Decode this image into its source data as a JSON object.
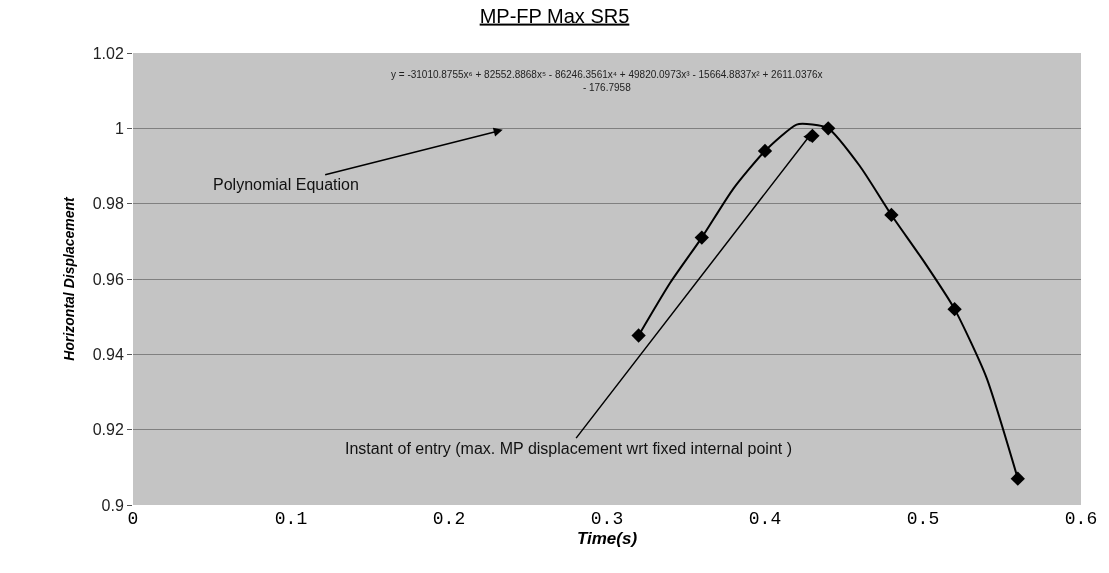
{
  "chart_data": {
    "type": "scatter",
    "title": "MP-FP Max SR5",
    "xlabel": "Time(s)",
    "ylabel": "Horizontal Displacement",
    "xlim": [
      0,
      0.6
    ],
    "xticks": [
      0,
      0.1,
      0.2,
      0.3,
      0.4,
      0.5,
      0.6
    ],
    "ylim": [
      0.9,
      1.02
    ],
    "yticks": [
      0.9,
      0.92,
      0.94,
      0.96,
      0.98,
      1,
      1.02
    ],
    "grid": "y",
    "series": [
      {
        "marker": "diamond",
        "color": "#000000",
        "x": [
          0.32,
          0.36,
          0.4,
          0.43,
          0.44,
          0.48,
          0.52,
          0.56
        ],
        "values": [
          0.945,
          0.971,
          0.994,
          0.998,
          1.0,
          0.977,
          0.952,
          0.907
        ]
      },
      {
        "type": "line",
        "marker": "none",
        "line_style": "solid",
        "color": "#000000",
        "x": [
          0.32,
          0.34,
          0.36,
          0.38,
          0.4,
          0.42,
          0.43,
          0.44,
          0.46,
          0.48,
          0.5,
          0.52,
          0.54,
          0.56
        ],
        "values": [
          0.945,
          0.959,
          0.971,
          0.984,
          0.994,
          1.001,
          1.001,
          1.0,
          0.99,
          0.977,
          0.965,
          0.952,
          0.934,
          0.907
        ]
      }
    ],
    "annotations": [
      "y = -31010.8755x⁶ + 82552.8868x⁵ - 86246.3561x⁴ + 49820.0973x³ - 15664.8837x² + 2611.0376x\n- 176.7958",
      "Polynomial Equation",
      {
        "text": "Instant of entry (max. MP displacement wrt fixed internal point )",
        "x": 0.43,
        "y": 0.999
      }
    ]
  }
}
